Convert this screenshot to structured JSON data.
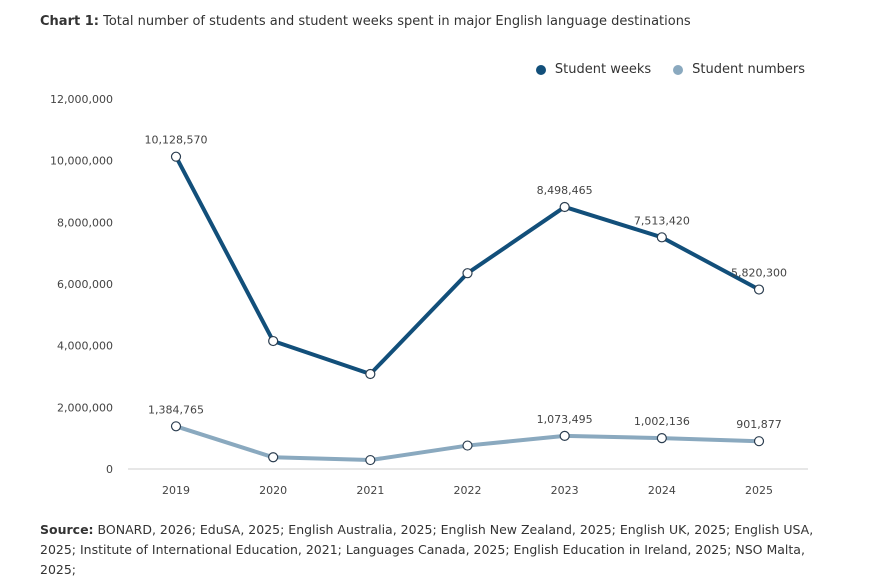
{
  "title": {
    "lead": "Chart 1:",
    "text": "Total number of students and student weeks spent in major English language destinations"
  },
  "source": {
    "lead": "Source:",
    "text": "BONARD, 2026; EduSA, 2025; English Australia, 2025; English New Zealand, 2025; English UK, 2025; English USA, 2025; Institute of International Education, 2021; Languages Canada, 2025; English Education in Ireland, 2025; NSO Malta, 2025;"
  },
  "colors": {
    "student_weeks": "#124f7a",
    "student_numbers": "#8aa9bf",
    "axis": "#cfcfcf"
  },
  "chart_data": {
    "type": "line",
    "categories": [
      "2019",
      "2020",
      "2021",
      "2022",
      "2023",
      "2024",
      "2025"
    ],
    "ylim": [
      0,
      12000000
    ],
    "yticks": [
      {
        "value": 0,
        "label": "0"
      },
      {
        "value": 2000000,
        "label": "2,000,000"
      },
      {
        "value": 4000000,
        "label": "4,000,000"
      },
      {
        "value": 6000000,
        "label": "6,000,000"
      },
      {
        "value": 8000000,
        "label": "8,000,000"
      },
      {
        "value": 10000000,
        "label": "10,000,000"
      },
      {
        "value": 12000000,
        "label": "12,000,000"
      }
    ],
    "grid": false,
    "legend_position": "top-right",
    "series": [
      {
        "name": "Student weeks",
        "key": "student_weeks",
        "values": [
          10128570,
          4150000,
          3080000,
          6350000,
          8498465,
          7513420,
          5820300
        ],
        "labels": [
          "10,128,570",
          "",
          "",
          "",
          "8,498,465",
          "7,513,420",
          "5,820,300"
        ]
      },
      {
        "name": "Student numbers",
        "key": "student_numbers",
        "values": [
          1384765,
          380000,
          290000,
          760000,
          1073495,
          1002136,
          901877
        ],
        "labels": [
          "1,384,765",
          "",
          "",
          "",
          "1,073,495",
          "1,002,136",
          "901,877"
        ]
      }
    ]
  }
}
